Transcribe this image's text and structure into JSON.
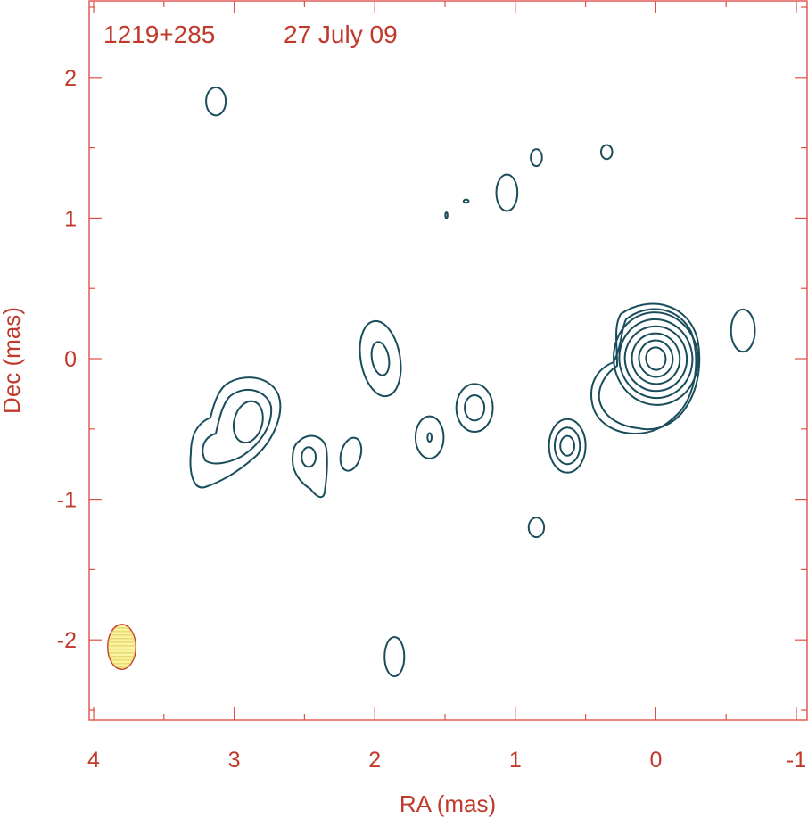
{
  "chart_data": {
    "type": "contour",
    "source_name": "1219+285",
    "date": "27 July 09",
    "xlabel": "RA (mas)",
    "ylabel": "Dec (mas)",
    "xlim": [
      4.0,
      -1.0
    ],
    "ylim": [
      -2.55,
      2.55
    ],
    "xticks": [
      4,
      3,
      2,
      1,
      0,
      -1
    ],
    "xtick_labels": [
      "4",
      "3",
      "2",
      "1",
      "0",
      "-1"
    ],
    "yticks": [
      2,
      1,
      0,
      -1,
      -2
    ],
    "ytick_labels": [
      "2",
      "1",
      "0",
      "-1",
      "-2"
    ],
    "colors": {
      "frame": "#e0504a",
      "text": "#c0392b",
      "contour": "#1a4d5c",
      "beam_fill": "#fbf3a0"
    },
    "beam": {
      "x": 3.8,
      "y": -2.05,
      "rx": 0.1,
      "ry": 0.16
    },
    "components": [
      {
        "name": "core",
        "x": 0.0,
        "y": 0.0,
        "rx": [
          0.07,
          0.12,
          0.17,
          0.22,
          0.26,
          0.3
        ],
        "ry": [
          0.08,
          0.13,
          0.18,
          0.23,
          0.28,
          0.33
        ],
        "rot": -8
      },
      {
        "name": "knot-upper-far-left",
        "x": 3.13,
        "y": 1.83,
        "rx": [
          0.07
        ],
        "ry": [
          0.1
        ],
        "rot": 0
      },
      {
        "name": "knot-lower-left",
        "x": 1.86,
        "y": -2.12,
        "rx": [
          0.07
        ],
        "ry": [
          0.14
        ],
        "rot": 0
      },
      {
        "name": "knot-upper-1",
        "x": 1.06,
        "y": 1.18,
        "rx": [
          0.075
        ],
        "ry": [
          0.13
        ],
        "rot": 0
      },
      {
        "name": "knot-upper-2",
        "x": 0.85,
        "y": 1.43,
        "rx": [
          0.04
        ],
        "ry": [
          0.06
        ],
        "rot": 0
      },
      {
        "name": "knot-upper-3",
        "x": 0.35,
        "y": 1.47,
        "rx": [
          0.04
        ],
        "ry": [
          0.05
        ],
        "rot": 0
      },
      {
        "name": "knot-upper-tiny-1",
        "x": 1.35,
        "y": 1.12,
        "rx": [
          0.018
        ],
        "ry": [
          0.012
        ],
        "rot": 0
      },
      {
        "name": "knot-upper-tiny-2",
        "x": 1.49,
        "y": 1.02,
        "rx": [
          0.008
        ],
        "ry": [
          0.02
        ],
        "rot": 0
      },
      {
        "name": "knot-right",
        "x": -0.62,
        "y": 0.2,
        "rx": [
          0.085
        ],
        "ry": [
          0.15
        ],
        "rot": 0
      },
      {
        "name": "knot-right-lower",
        "x": 0.85,
        "y": -1.2,
        "rx": [
          0.055
        ],
        "ry": [
          0.07
        ],
        "rot": 0
      },
      {
        "name": "knot-mid-right",
        "x": 0.63,
        "y": -0.62,
        "rx": [
          0.05,
          0.09,
          0.13
        ],
        "ry": [
          0.07,
          0.13,
          0.19
        ],
        "rot": 0
      },
      {
        "name": "knot-mid",
        "x": 1.29,
        "y": -0.35,
        "rx": [
          0.07,
          0.13
        ],
        "ry": [
          0.09,
          0.17
        ],
        "rot": 0
      },
      {
        "name": "knot-mid-2",
        "x": 1.61,
        "y": -0.56,
        "rx": [
          0.015,
          0.1
        ],
        "ry": [
          0.03,
          0.15
        ],
        "rot": 0
      },
      {
        "name": "knot-center-upper",
        "x": 1.96,
        "y": 0.0,
        "rx": [
          0.06,
          0.14
        ],
        "ry": [
          0.12,
          0.27
        ],
        "rot": -10
      },
      {
        "name": "knot-left-small",
        "x": 2.17,
        "y": -0.68,
        "rx": [
          0.07
        ],
        "ry": [
          0.12
        ],
        "rot": 15
      },
      {
        "name": "knot-left",
        "x": 2.47,
        "y": -0.7,
        "rx": [
          0.05
        ],
        "ry": [
          0.07
        ],
        "rot": 0
      },
      {
        "name": "knot-far-left",
        "x": 2.9,
        "y": -0.45,
        "rx": [
          0.1
        ],
        "ry": [
          0.15
        ],
        "rot": 15
      }
    ]
  }
}
